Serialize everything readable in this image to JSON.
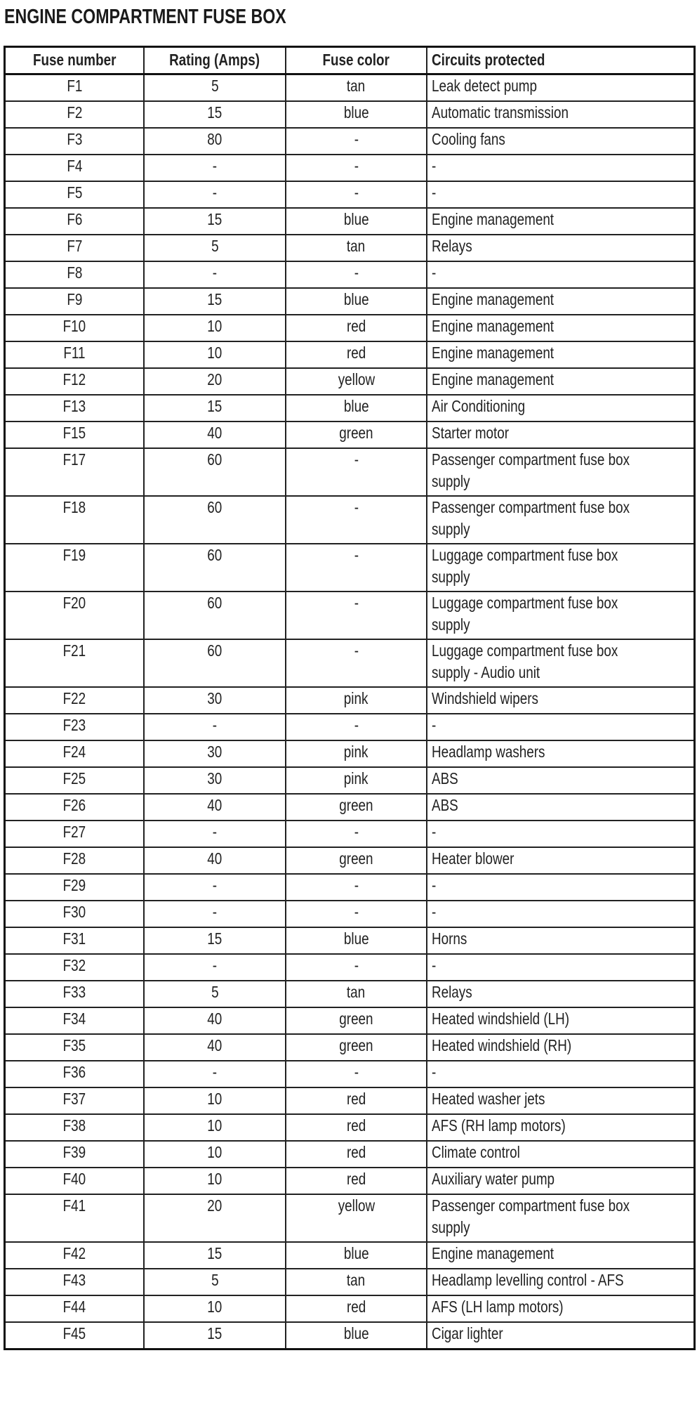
{
  "title": "ENGINE COMPARTMENT FUSE BOX",
  "table": {
    "headers": [
      "Fuse number",
      "Rating (Amps)",
      "Fuse color",
      "Circuits protected"
    ],
    "rows": [
      [
        "F1",
        "5",
        "tan",
        "Leak detect pump"
      ],
      [
        "F2",
        "15",
        "blue",
        "Automatic transmission"
      ],
      [
        "F3",
        "80",
        "-",
        "Cooling fans"
      ],
      [
        "F4",
        "-",
        "-",
        "-"
      ],
      [
        "F5",
        "-",
        "-",
        "-"
      ],
      [
        "F6",
        "15",
        "blue",
        "Engine management"
      ],
      [
        "F7",
        "5",
        "tan",
        "Relays"
      ],
      [
        "F8",
        "-",
        "-",
        "-"
      ],
      [
        "F9",
        "15",
        "blue",
        "Engine management"
      ],
      [
        "F10",
        "10",
        "red",
        "Engine management"
      ],
      [
        "F11",
        "10",
        "red",
        "Engine management"
      ],
      [
        "F12",
        "20",
        "yellow",
        "Engine management"
      ],
      [
        "F13",
        "15",
        "blue",
        "Air Conditioning"
      ],
      [
        "F15",
        "40",
        "green",
        "Starter motor"
      ],
      [
        "F17",
        "60",
        "-",
        "Passenger compartment fuse box supply"
      ],
      [
        "F18",
        "60",
        "-",
        "Passenger compartment fuse box supply"
      ],
      [
        "F19",
        "60",
        "-",
        "Luggage compartment fuse box supply"
      ],
      [
        "F20",
        "60",
        "-",
        "Luggage compartment fuse box supply"
      ],
      [
        "F21",
        "60",
        "-",
        "Luggage compartment fuse box supply - Audio unit"
      ],
      [
        "F22",
        "30",
        "pink",
        "Windshield wipers"
      ],
      [
        "F23",
        "-",
        "-",
        "-"
      ],
      [
        "F24",
        "30",
        "pink",
        "Headlamp washers"
      ],
      [
        "F25",
        "30",
        "pink",
        "ABS"
      ],
      [
        "F26",
        "40",
        "green",
        "ABS"
      ],
      [
        "F27",
        "-",
        "-",
        "-"
      ],
      [
        "F28",
        "40",
        "green",
        "Heater blower"
      ],
      [
        "F29",
        "-",
        "-",
        "-"
      ],
      [
        "F30",
        "-",
        "-",
        "-"
      ],
      [
        "F31",
        "15",
        "blue",
        "Horns"
      ],
      [
        "F32",
        "-",
        "-",
        "-"
      ],
      [
        "F33",
        "5",
        "tan",
        "Relays"
      ],
      [
        "F34",
        "40",
        "green",
        "Heated windshield (LH)"
      ],
      [
        "F35",
        "40",
        "green",
        "Heated windshield (RH)"
      ],
      [
        "F36",
        "-",
        "-",
        "-"
      ],
      [
        "F37",
        "10",
        "red",
        "Heated washer jets"
      ],
      [
        "F38",
        "10",
        "red",
        "AFS (RH lamp motors)"
      ],
      [
        "F39",
        "10",
        "red",
        "Climate control"
      ],
      [
        "F40",
        "10",
        "red",
        "Auxiliary water pump"
      ],
      [
        "F41",
        "20",
        "yellow",
        "Passenger compartment fuse box supply"
      ],
      [
        "F42",
        "15",
        "blue",
        "Engine management"
      ],
      [
        "F43",
        "5",
        "tan",
        "Headlamp levelling control - AFS"
      ],
      [
        "F44",
        "10",
        "red",
        "AFS (LH lamp motors)"
      ],
      [
        "F45",
        "15",
        "blue",
        "Cigar lighter"
      ]
    ]
  }
}
